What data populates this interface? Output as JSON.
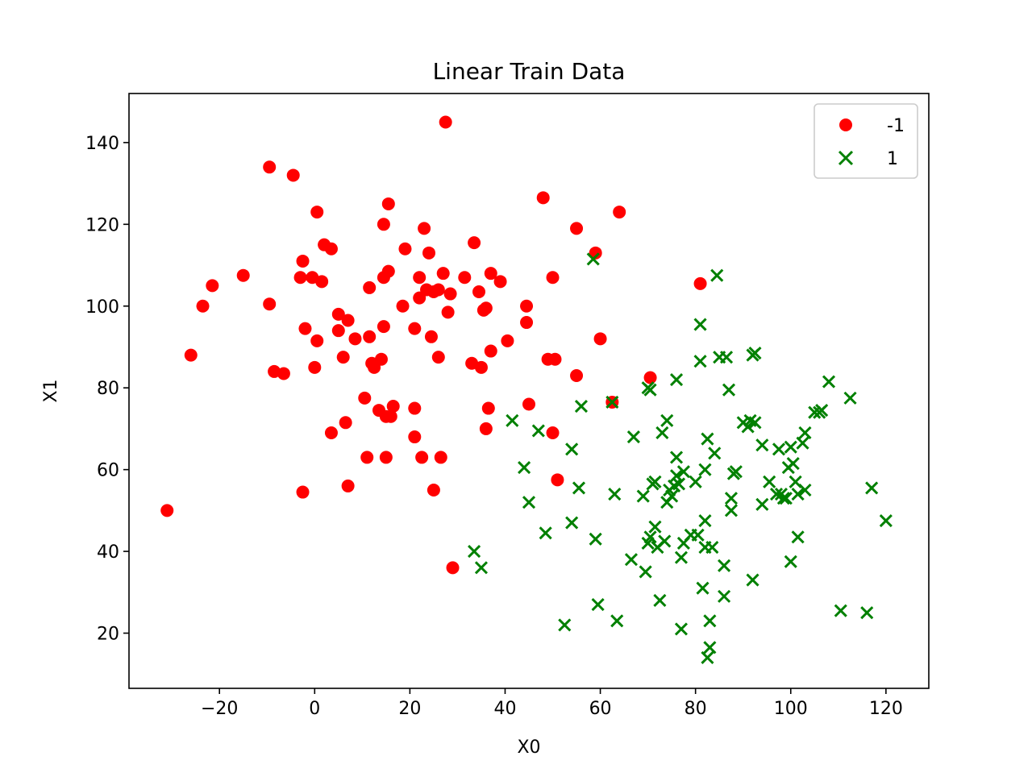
{
  "chart_data": {
    "type": "scatter",
    "title": "Linear Train Data",
    "xlabel": "X0",
    "ylabel": "X1",
    "xlim": [
      -39,
      129
    ],
    "ylim": [
      6.5,
      152
    ],
    "xticks": [
      -20,
      0,
      20,
      40,
      60,
      80,
      100,
      120
    ],
    "xtick_labels": [
      "−20",
      "0",
      "20",
      "40",
      "60",
      "80",
      "100",
      "120"
    ],
    "yticks": [
      20,
      40,
      60,
      80,
      100,
      120,
      140
    ],
    "ytick_labels": [
      "20",
      "40",
      "60",
      "80",
      "100",
      "120",
      "140"
    ],
    "grid": false,
    "legend_position": "top-right",
    "series": [
      {
        "name": "-1",
        "marker": "circle",
        "color": "#ff0000",
        "points": [
          [
            -31,
            50
          ],
          [
            -26,
            88
          ],
          [
            -23.5,
            100
          ],
          [
            -21.5,
            105
          ],
          [
            -15,
            107.5
          ],
          [
            -9.5,
            134
          ],
          [
            -9.5,
            100.5
          ],
          [
            -8.5,
            84
          ],
          [
            -6.5,
            83.5
          ],
          [
            -4.5,
            132
          ],
          [
            -3,
            107
          ],
          [
            -2.5,
            111
          ],
          [
            -2.5,
            54.5
          ],
          [
            -2,
            94.5
          ],
          [
            -0.5,
            107
          ],
          [
            0,
            85
          ],
          [
            0.5,
            123
          ],
          [
            0.5,
            91.5
          ],
          [
            1.5,
            106
          ],
          [
            2,
            115
          ],
          [
            3.5,
            114
          ],
          [
            3.5,
            69
          ],
          [
            5,
            98
          ],
          [
            5,
            94
          ],
          [
            6,
            87.5
          ],
          [
            6.5,
            71.5
          ],
          [
            7,
            96.5
          ],
          [
            7,
            56
          ],
          [
            8.5,
            92
          ],
          [
            10.5,
            77.5
          ],
          [
            11,
            63
          ],
          [
            11.5,
            104.5
          ],
          [
            11.5,
            92.5
          ],
          [
            12,
            86
          ],
          [
            12.5,
            85
          ],
          [
            13.5,
            74.5
          ],
          [
            14,
            87
          ],
          [
            14.5,
            120
          ],
          [
            14.5,
            107
          ],
          [
            14.5,
            95
          ],
          [
            15,
            73
          ],
          [
            15,
            63
          ],
          [
            15.5,
            125
          ],
          [
            15.5,
            108.5
          ],
          [
            16,
            73
          ],
          [
            16.5,
            75.5
          ],
          [
            18.5,
            100
          ],
          [
            19,
            114
          ],
          [
            21,
            94.5
          ],
          [
            21,
            75
          ],
          [
            21,
            68
          ],
          [
            22,
            107
          ],
          [
            22,
            102
          ],
          [
            22.5,
            63
          ],
          [
            23,
            119
          ],
          [
            23.5,
            104
          ],
          [
            24,
            113
          ],
          [
            24.5,
            92.5
          ],
          [
            25,
            103.5
          ],
          [
            25,
            55
          ],
          [
            26,
            104
          ],
          [
            26,
            87.5
          ],
          [
            26.5,
            63
          ],
          [
            27,
            108
          ],
          [
            27.5,
            145
          ],
          [
            28,
            98.5
          ],
          [
            28.5,
            103
          ],
          [
            29,
            36
          ],
          [
            31.5,
            107
          ],
          [
            33,
            86
          ],
          [
            33.5,
            115.5
          ],
          [
            34.5,
            103.5
          ],
          [
            35,
            85
          ],
          [
            35.5,
            99
          ],
          [
            36,
            99.5
          ],
          [
            36,
            70
          ],
          [
            36.5,
            75
          ],
          [
            37,
            89
          ],
          [
            37,
            108
          ],
          [
            39,
            106
          ],
          [
            40.5,
            91.5
          ],
          [
            44.5,
            100
          ],
          [
            44.5,
            96
          ],
          [
            45,
            76
          ],
          [
            48,
            126.5
          ],
          [
            49,
            87
          ],
          [
            50,
            107
          ],
          [
            50,
            69
          ],
          [
            50.5,
            87
          ],
          [
            51,
            57.5
          ],
          [
            55,
            119
          ],
          [
            55,
            83
          ],
          [
            59,
            113
          ],
          [
            60,
            92
          ],
          [
            62.5,
            76.5
          ],
          [
            64,
            123
          ],
          [
            70.5,
            82.5
          ],
          [
            81,
            105.5
          ]
        ]
      },
      {
        "name": "1",
        "marker": "x",
        "color": "#008000",
        "points": [
          [
            33.5,
            40
          ],
          [
            35,
            36
          ],
          [
            41.5,
            72
          ],
          [
            44,
            60.5
          ],
          [
            45,
            52
          ],
          [
            47,
            69.5
          ],
          [
            48.5,
            44.5
          ],
          [
            52.5,
            22
          ],
          [
            54,
            47
          ],
          [
            54,
            65
          ],
          [
            55.5,
            55.5
          ],
          [
            56,
            75.5
          ],
          [
            58.5,
            111.5
          ],
          [
            59,
            43
          ],
          [
            59.5,
            27
          ],
          [
            62.5,
            76.5
          ],
          [
            63,
            54
          ],
          [
            63.5,
            23
          ],
          [
            66.5,
            38
          ],
          [
            67,
            68
          ],
          [
            69,
            53.5
          ],
          [
            69.5,
            35
          ],
          [
            70,
            80
          ],
          [
            70,
            42
          ],
          [
            70.5,
            43.5
          ],
          [
            70.5,
            79.5
          ],
          [
            71,
            56.5
          ],
          [
            71.5,
            57
          ],
          [
            71.5,
            46
          ],
          [
            72,
            41
          ],
          [
            72.5,
            28
          ],
          [
            73,
            69
          ],
          [
            73.5,
            42.5
          ],
          [
            74,
            72
          ],
          [
            74,
            52
          ],
          [
            74.5,
            55
          ],
          [
            75,
            53.5
          ],
          [
            75.5,
            56
          ],
          [
            76,
            63
          ],
          [
            76,
            58.5
          ],
          [
            76,
            82
          ],
          [
            76.5,
            56.5
          ],
          [
            77,
            38.5
          ],
          [
            77,
            21
          ],
          [
            77.5,
            42
          ],
          [
            77.5,
            59.5
          ],
          [
            79,
            44
          ],
          [
            80,
            57
          ],
          [
            80.5,
            44
          ],
          [
            81,
            86.5
          ],
          [
            81,
            95.5
          ],
          [
            81.5,
            31
          ],
          [
            82,
            47.5
          ],
          [
            82,
            60
          ],
          [
            82,
            41
          ],
          [
            82.5,
            14
          ],
          [
            82.5,
            67.5
          ],
          [
            83,
            23
          ],
          [
            83,
            16.5
          ],
          [
            83.5,
            41
          ],
          [
            84,
            64
          ],
          [
            84.5,
            107.5
          ],
          [
            85,
            87.5
          ],
          [
            86,
            36.5
          ],
          [
            86,
            29
          ],
          [
            86.5,
            87.5
          ],
          [
            87,
            79.5
          ],
          [
            87.5,
            50
          ],
          [
            87.5,
            53
          ],
          [
            88,
            59
          ],
          [
            88.5,
            59.5
          ],
          [
            90,
            71.5
          ],
          [
            91,
            70.5
          ],
          [
            91.5,
            72
          ],
          [
            92,
            88
          ],
          [
            92,
            33
          ],
          [
            92.5,
            88.5
          ],
          [
            92.5,
            71.5
          ],
          [
            94,
            51.5
          ],
          [
            94,
            66
          ],
          [
            95.5,
            57
          ],
          [
            97,
            54
          ],
          [
            97.5,
            65
          ],
          [
            98,
            54
          ],
          [
            98.5,
            53
          ],
          [
            99,
            53
          ],
          [
            99.5,
            60.5
          ],
          [
            100,
            37.5
          ],
          [
            100,
            65.5
          ],
          [
            100.5,
            61.5
          ],
          [
            101,
            57
          ],
          [
            101.5,
            54
          ],
          [
            101.5,
            43.5
          ],
          [
            102.5,
            66.5
          ],
          [
            103,
            55
          ],
          [
            103,
            69
          ],
          [
            105,
            74
          ],
          [
            106,
            74
          ],
          [
            106.5,
            74.5
          ],
          [
            108,
            81.5
          ],
          [
            110.5,
            25.5
          ],
          [
            112.5,
            77.5
          ],
          [
            116,
            25
          ],
          [
            117,
            55.5
          ],
          [
            120,
            47.5
          ]
        ]
      }
    ]
  }
}
